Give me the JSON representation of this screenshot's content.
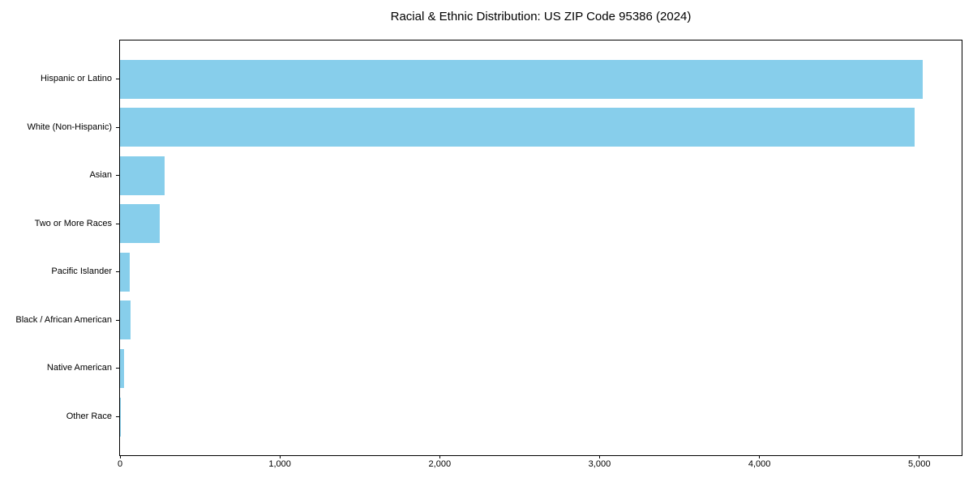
{
  "chart_data": {
    "type": "bar",
    "orientation": "horizontal",
    "title": "Racial & Ethnic Distribution: US ZIP Code 95386 (2024)",
    "categories": [
      "Hispanic or Latino",
      "White (Non-Hispanic)",
      "Asian",
      "Two or More Races",
      "Pacific Islander",
      "Black / African American",
      "Native American",
      "Other Race"
    ],
    "values": [
      5020,
      4970,
      280,
      250,
      62,
      66,
      25,
      5
    ],
    "x_ticks": {
      "values": [
        0,
        1000,
        2000,
        3000,
        4000,
        5000
      ],
      "labels": [
        "0",
        "1,000",
        "2,000",
        "3,000",
        "4,000",
        "5,000"
      ]
    },
    "xlim": [
      0,
      5265
    ],
    "xlabel": "",
    "ylabel": "",
    "grid": false,
    "legend": null,
    "bar_color": "#87CEEB",
    "axis_color": "#000000",
    "text_color": "#000000",
    "background_color": "#FFFFFF"
  }
}
